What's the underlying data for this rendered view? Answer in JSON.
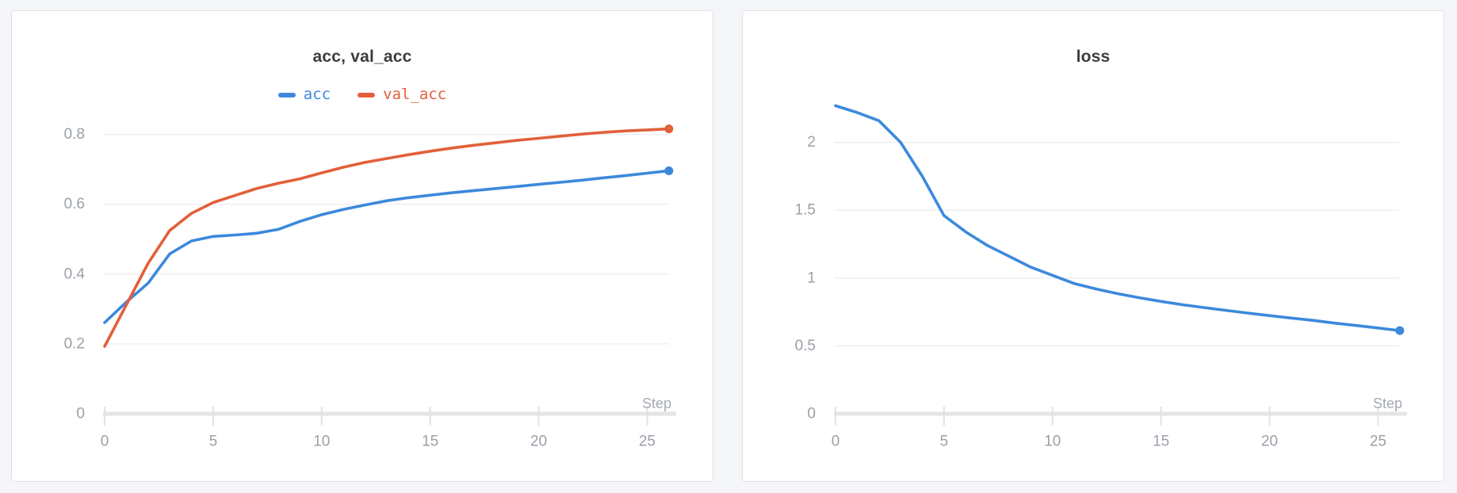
{
  "page": {
    "background_color": "#f4f6f9"
  },
  "panels": [
    {
      "title": "acc, val_acc",
      "x_axis_label": "Step",
      "legend": [
        {
          "label": "acc",
          "color": "#3c89dc"
        },
        {
          "label": "val_acc",
          "color": "#e2603a"
        }
      ]
    },
    {
      "title": "loss",
      "x_axis_label": "Step",
      "legend": []
    }
  ],
  "colors": {
    "accent_blue": "#3c89dc",
    "accent_orange": "#e2603a",
    "grid_line": "#ededef",
    "axis_bar": "#e4e5e7",
    "axis_tick": "#e0e2e4",
    "tick_label": "#9aa0a8",
    "axis_name_label": "#a6abb3",
    "title_text": "#3b3d40"
  },
  "chart_data": [
    {
      "type": "line",
      "title": "acc, val_acc",
      "xlabel": "Step",
      "ylabel": "",
      "grid": true,
      "legend_position": "top",
      "end_markers": true,
      "xlim": [
        0,
        26.3
      ],
      "ylim": [
        0,
        0.89
      ],
      "xticks": {
        "values": [
          0,
          5,
          10,
          15,
          20,
          25
        ],
        "labels": [
          "0",
          "5",
          "10",
          "15",
          "20",
          "25"
        ]
      },
      "yticks": {
        "values": [
          0,
          0.2,
          0.4,
          0.6,
          0.8
        ],
        "labels": [
          "0",
          "0.2",
          "0.4",
          "0.6",
          "0.8"
        ]
      },
      "x": [
        0,
        1,
        2,
        3,
        4,
        5,
        6,
        7,
        8,
        9,
        10,
        11,
        12,
        13,
        14,
        15,
        16,
        17,
        18,
        19,
        20,
        21,
        22,
        23,
        24,
        25,
        26
      ],
      "series": [
        {
          "name": "acc",
          "color": "#3c89dc",
          "values": [
            0.261,
            0.32,
            0.374,
            0.458,
            0.495,
            0.508,
            0.512,
            0.517,
            0.528,
            0.551,
            0.57,
            0.585,
            0.598,
            0.61,
            0.619,
            0.626,
            0.633,
            0.639,
            0.645,
            0.651,
            0.657,
            0.663,
            0.669,
            0.676,
            0.682,
            0.689,
            0.696
          ]
        },
        {
          "name": "val_acc",
          "color": "#e2603a",
          "values": [
            0.193,
            0.312,
            0.431,
            0.525,
            0.574,
            0.605,
            0.625,
            0.645,
            0.66,
            0.673,
            0.69,
            0.706,
            0.72,
            0.731,
            0.742,
            0.752,
            0.761,
            0.769,
            0.776,
            0.783,
            0.789,
            0.795,
            0.801,
            0.806,
            0.81,
            0.813,
            0.816
          ]
        }
      ]
    },
    {
      "type": "line",
      "title": "loss",
      "xlabel": "Step",
      "ylabel": "",
      "grid": true,
      "legend_position": "none",
      "end_markers": true,
      "xlim": [
        0,
        26.3
      ],
      "ylim": [
        0,
        2.29
      ],
      "xticks": {
        "values": [
          0,
          5,
          10,
          15,
          20,
          25
        ],
        "labels": [
          "0",
          "5",
          "10",
          "15",
          "20",
          "25"
        ]
      },
      "yticks": {
        "values": [
          0,
          0.5,
          1,
          1.5,
          2
        ],
        "labels": [
          "0",
          "0.5",
          "1",
          "1.5",
          "2"
        ]
      },
      "x": [
        0,
        1,
        2,
        3,
        4,
        5,
        6,
        7,
        8,
        9,
        10,
        11,
        12,
        13,
        14,
        15,
        16,
        17,
        18,
        19,
        20,
        21,
        22,
        23,
        24,
        25,
        26
      ],
      "series": [
        {
          "name": "loss",
          "color": "#3c89dc",
          "values": [
            2.27,
            2.22,
            2.16,
            2.0,
            1.75,
            1.46,
            1.34,
            1.24,
            1.16,
            1.08,
            1.02,
            0.96,
            0.92,
            0.885,
            0.855,
            0.828,
            0.803,
            0.782,
            0.762,
            0.742,
            0.723,
            0.705,
            0.688,
            0.668,
            0.65,
            0.632,
            0.613
          ]
        }
      ]
    }
  ]
}
